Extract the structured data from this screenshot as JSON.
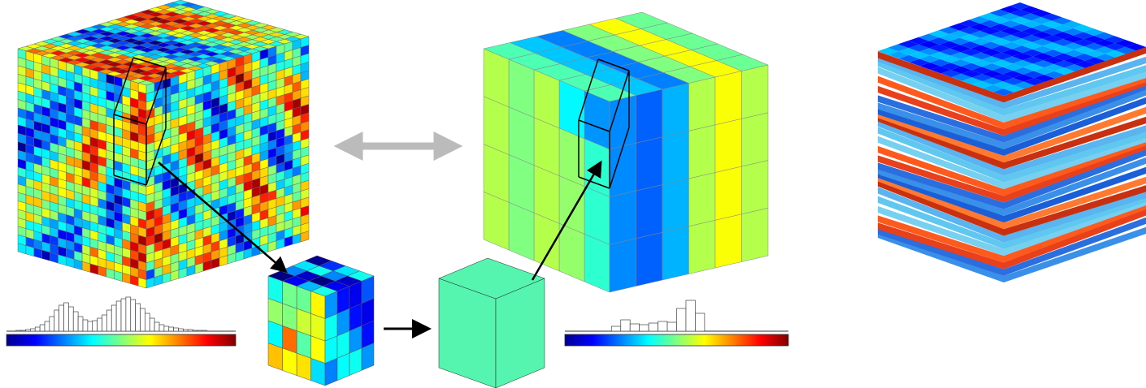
{
  "histograms": [
    {
      "counts": [
        0,
        0,
        1,
        1,
        2,
        3,
        5,
        8,
        12,
        18,
        26,
        32,
        35,
        30,
        24,
        18,
        14,
        12,
        13,
        16,
        20,
        26,
        32,
        37,
        40,
        42,
        39,
        34,
        28,
        22,
        16,
        11,
        8,
        6,
        5,
        4,
        3,
        2,
        2,
        1,
        1,
        1,
        0,
        0,
        0,
        0,
        0,
        0
      ]
    },
    {
      "counts": [
        0,
        0,
        0,
        0,
        0,
        6,
        14,
        9,
        8,
        10,
        12,
        11,
        28,
        38,
        22,
        0,
        0,
        0,
        0,
        0,
        0,
        0,
        0,
        0
      ]
    }
  ]
}
